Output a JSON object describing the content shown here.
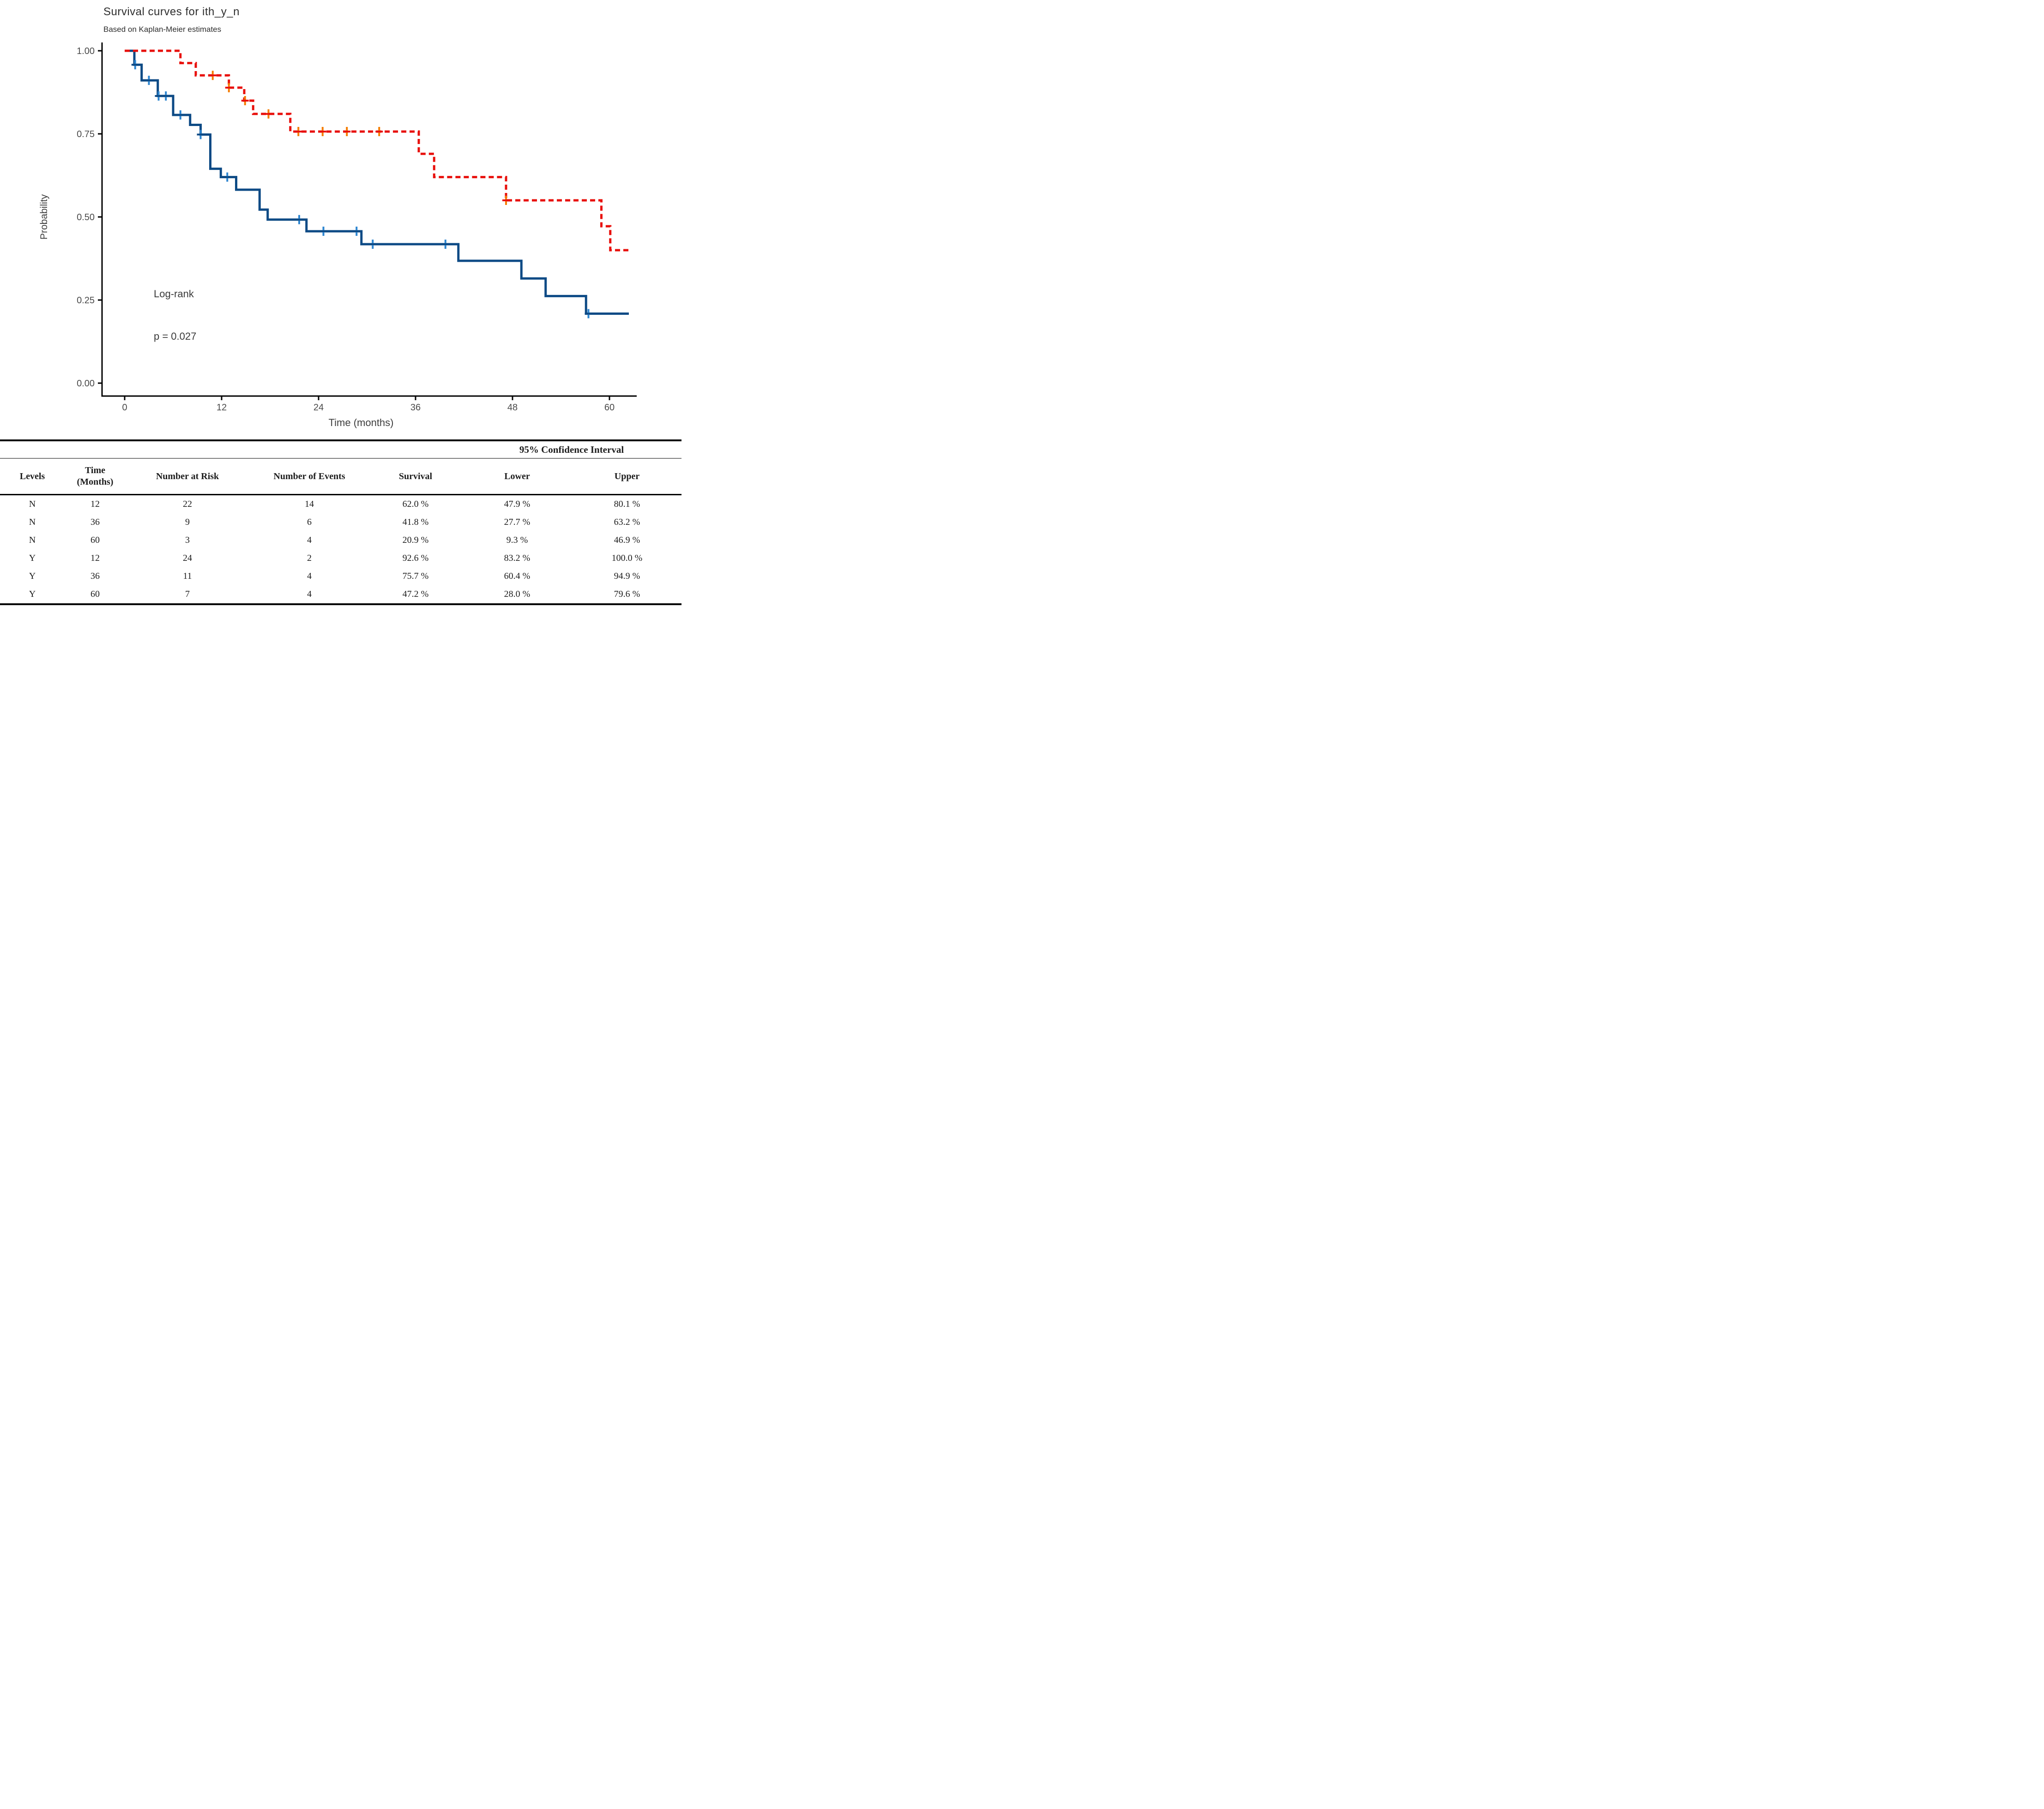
{
  "chart_data": {
    "type": "line",
    "title": "Survival curves for ith_y_n",
    "subtitle": "Based on Kaplan-Meier estimates",
    "xlabel": "Time (months)",
    "ylabel": "Probability",
    "annotations": {
      "test_label": "Log-rank",
      "p_value": "p = 0.027"
    },
    "xlim": [
      0,
      63
    ],
    "ylim": [
      0,
      1.0
    ],
    "grid": false,
    "legend_position": "none",
    "x_ticks": [
      {
        "v": 0,
        "label": "0"
      },
      {
        "v": 12,
        "label": "12"
      },
      {
        "v": 24,
        "label": "24"
      },
      {
        "v": 36,
        "label": "36"
      },
      {
        "v": 48,
        "label": "48"
      },
      {
        "v": 60,
        "label": "60"
      }
    ],
    "y_ticks": [
      {
        "v": 0,
        "label": "0.00"
      },
      {
        "v": 0.25,
        "label": "0.25"
      },
      {
        "v": 0.5,
        "label": "0.50"
      },
      {
        "v": 0.75,
        "label": "0.75"
      },
      {
        "v": 1,
        "label": "1.00"
      }
    ],
    "series": [
      {
        "name": "N",
        "line_style": "solid",
        "color": "#0d4a85",
        "censor_color": "#2e86d0",
        "steps": [
          [
            0,
            1.0
          ],
          [
            1.2,
            0.958
          ],
          [
            2.1,
            0.911
          ],
          [
            4.1,
            0.864
          ],
          [
            6.0,
            0.807
          ],
          [
            8.1,
            0.777
          ],
          [
            9.4,
            0.748
          ],
          [
            10.6,
            0.645
          ],
          [
            11.9,
            0.62
          ],
          [
            13.8,
            0.582
          ],
          [
            16.7,
            0.522
          ],
          [
            17.7,
            0.492
          ],
          [
            22.5,
            0.457
          ],
          [
            29.3,
            0.418
          ],
          [
            41.3,
            0.368
          ],
          [
            49.1,
            0.315
          ],
          [
            52.1,
            0.262
          ],
          [
            57.1,
            0.209
          ],
          [
            62.4,
            0.209
          ]
        ],
        "censors": [
          [
            1.3,
            0.958
          ],
          [
            3.0,
            0.911
          ],
          [
            4.2,
            0.864
          ],
          [
            5.1,
            0.864
          ],
          [
            6.9,
            0.807
          ],
          [
            9.4,
            0.748
          ],
          [
            12.7,
            0.62
          ],
          [
            21.6,
            0.492
          ],
          [
            24.6,
            0.457
          ],
          [
            28.7,
            0.457
          ],
          [
            30.7,
            0.418
          ],
          [
            39.7,
            0.418
          ],
          [
            57.4,
            0.209
          ]
        ]
      },
      {
        "name": "Y",
        "line_style": "dashed",
        "color": "#e8100c",
        "censor_color": "#f57c00",
        "steps": [
          [
            0,
            1.0
          ],
          [
            6.9,
            0.963
          ],
          [
            8.8,
            0.926
          ],
          [
            12.9,
            0.889
          ],
          [
            14.8,
            0.85
          ],
          [
            15.9,
            0.81
          ],
          [
            20.5,
            0.757
          ],
          [
            36.4,
            0.69
          ],
          [
            38.3,
            0.62
          ],
          [
            47.2,
            0.55
          ],
          [
            59.0,
            0.472
          ],
          [
            60.1,
            0.4
          ],
          [
            62.4,
            0.4
          ]
        ],
        "censors": [
          [
            10.9,
            0.926
          ],
          [
            12.9,
            0.889
          ],
          [
            14.9,
            0.85
          ],
          [
            17.8,
            0.81
          ],
          [
            21.5,
            0.757
          ],
          [
            24.5,
            0.757
          ],
          [
            27.5,
            0.757
          ],
          [
            31.5,
            0.757
          ],
          [
            47.2,
            0.55
          ]
        ]
      }
    ]
  },
  "table": {
    "ci_spanner": "95% Confidence Interval",
    "headers": [
      "Levels",
      "Time\n(Months)",
      "Number at Risk",
      "Number of Events",
      "Survival",
      "Lower",
      "Upper"
    ],
    "rows": [
      [
        "N",
        "12",
        "22",
        "14",
        "62.0 %",
        "47.9 %",
        "80.1 %"
      ],
      [
        "N",
        "36",
        "9",
        "6",
        "41.8 %",
        "27.7 %",
        "63.2 %"
      ],
      [
        "N",
        "60",
        "3",
        "4",
        "20.9 %",
        "9.3 %",
        "46.9 %"
      ],
      [
        "Y",
        "12",
        "24",
        "2",
        "92.6 %",
        "83.2 %",
        "100.0 %"
      ],
      [
        "Y",
        "36",
        "11",
        "4",
        "75.7 %",
        "60.4 %",
        "94.9 %"
      ],
      [
        "Y",
        "60",
        "7",
        "4",
        "47.2 %",
        "28.0 %",
        "79.6 %"
      ]
    ]
  },
  "colors": {
    "axis": "#000000",
    "tick_text": "#4a4a4a",
    "curve_n": "#0d4a85",
    "curve_y": "#e8100c"
  }
}
